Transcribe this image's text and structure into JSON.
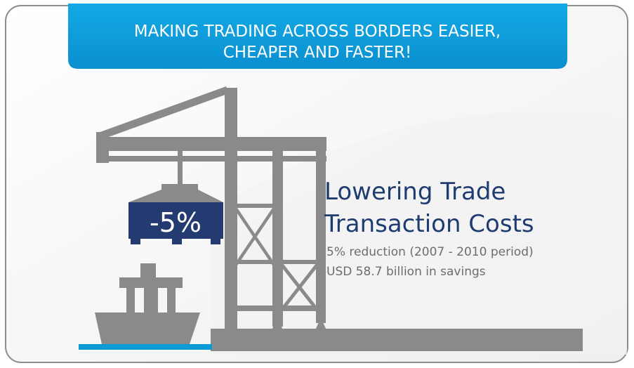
{
  "banner": {
    "lines": [
      "MAKING TRADING ACROSS BORDERS EASIER,",
      "CHEAPER AND FASTER!"
    ]
  },
  "container_label": "-5%",
  "heading": {
    "lines": [
      "Lowering Trade",
      "Transaction Costs"
    ]
  },
  "details": [
    "5% reduction (2007 - 2010 period)",
    "USD 58.7 billion in savings"
  ]
}
